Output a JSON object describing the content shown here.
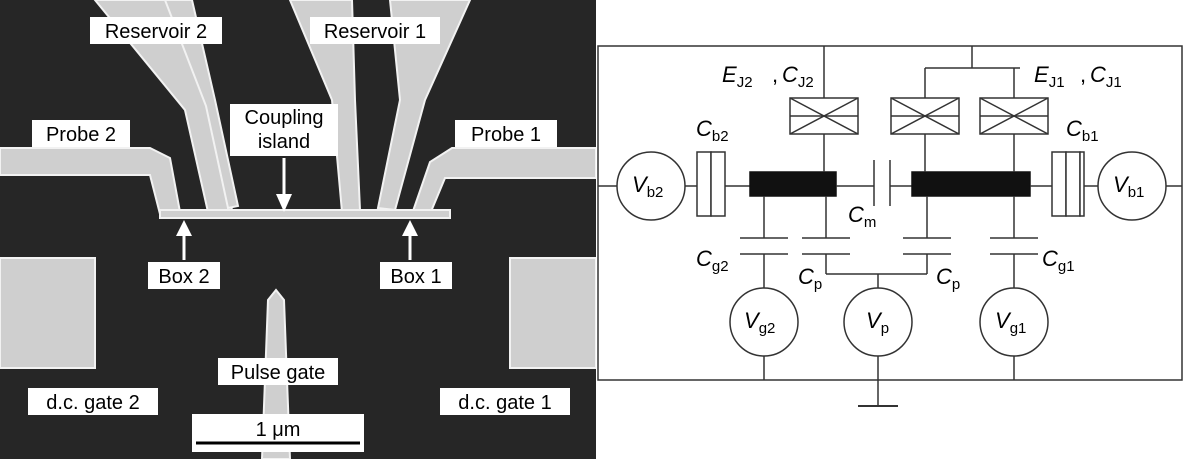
{
  "micrograph": {
    "labels": {
      "reservoir2": "Reservoir 2",
      "reservoir1": "Reservoir 1",
      "probe2": "Probe 2",
      "probe1": "Probe 1",
      "coupling_line1": "Coupling",
      "coupling_line2": "island",
      "box2": "Box 2",
      "box1": "Box 1",
      "pulse_gate": "Pulse gate",
      "dc_gate2": "d.c. gate 2",
      "dc_gate1": "d.c. gate 1"
    },
    "scale_bar": {
      "label": "1 μm"
    },
    "colors": {
      "background": "#262626",
      "metal": "#cfcfcf",
      "edge": "#f2f2f2"
    }
  },
  "circuit": {
    "labels": {
      "EJ2": {
        "main": "E",
        "sub": "J2"
      },
      "CJ2": {
        "main": "C",
        "sub": "J2"
      },
      "EJ1": {
        "main": "E",
        "sub": "J1"
      },
      "CJ1": {
        "main": "C",
        "sub": "J1"
      },
      "Cb2": {
        "main": "C",
        "sub": "b2"
      },
      "Cb1": {
        "main": "C",
        "sub": "b1"
      },
      "Vb2": {
        "main": "V",
        "sub": "b2"
      },
      "Vb1": {
        "main": "V",
        "sub": "b1"
      },
      "Cm": {
        "main": "C",
        "sub": "m"
      },
      "Cg2": {
        "main": "C",
        "sub": "g2"
      },
      "Cg1": {
        "main": "C",
        "sub": "g1"
      },
      "Cp_left": {
        "main": "C",
        "sub": "p"
      },
      "Cp_right": {
        "main": "C",
        "sub": "p"
      },
      "Vg2": {
        "main": "V",
        "sub": "g2"
      },
      "Vp": {
        "main": "V",
        "sub": "p"
      },
      "Vg1": {
        "main": "V",
        "sub": "g1"
      }
    }
  }
}
